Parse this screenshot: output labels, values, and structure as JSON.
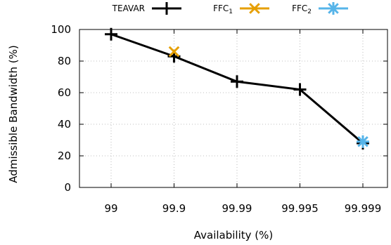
{
  "chart_data": {
    "type": "line",
    "xlabel": "Availability (%)",
    "ylabel": "Admissible Bandwidth (%)",
    "categories": [
      "99",
      "99.9",
      "99.99",
      "99.995",
      "99.999"
    ],
    "ylim": [
      0,
      100
    ],
    "yticks": [
      0,
      20,
      40,
      60,
      80,
      100
    ],
    "grid": true,
    "legend_position": "top",
    "series": [
      {
        "name": "TEAVAR",
        "legend_base": "TEAVAR",
        "legend_sub": "",
        "marker": "plus",
        "color": "#000000",
        "line": true,
        "values": [
          97,
          83,
          67,
          62,
          28
        ]
      },
      {
        "name": "FFC1",
        "legend_base": "FFC",
        "legend_sub": "1",
        "marker": "cross",
        "color": "#e69f00",
        "line": false,
        "values": [
          null,
          86,
          null,
          null,
          null
        ]
      },
      {
        "name": "FFC2",
        "legend_base": "FFC",
        "legend_sub": "2",
        "marker": "star",
        "color": "#56b4e9",
        "line": false,
        "values": [
          null,
          null,
          null,
          null,
          29
        ]
      }
    ]
  }
}
